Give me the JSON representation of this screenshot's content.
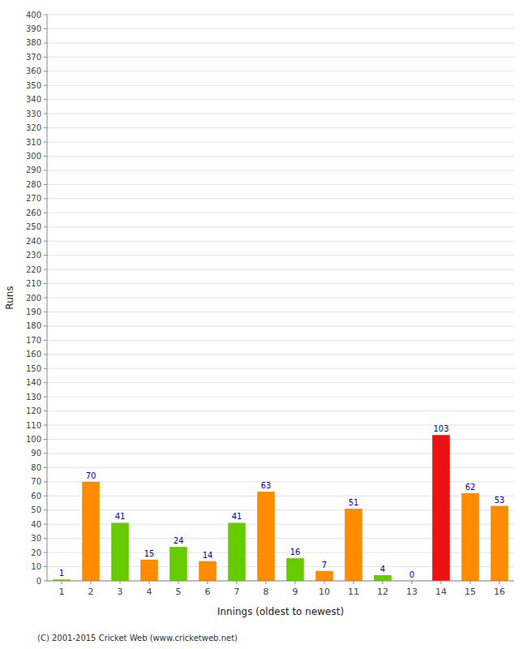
{
  "chart_data": {
    "type": "bar",
    "categories": [
      "1",
      "2",
      "3",
      "4",
      "5",
      "6",
      "7",
      "8",
      "9",
      "10",
      "11",
      "12",
      "13",
      "14",
      "15",
      "16"
    ],
    "values": [
      1,
      70,
      41,
      15,
      24,
      14,
      41,
      63,
      16,
      7,
      51,
      4,
      0,
      103,
      62,
      53
    ],
    "colors": [
      "#66cc00",
      "#ff8c00",
      "#66cc00",
      "#ff8c00",
      "#66cc00",
      "#ff8c00",
      "#66cc00",
      "#ff8c00",
      "#66cc00",
      "#ff8c00",
      "#ff8c00",
      "#66cc00",
      "#ff8c00",
      "#ee1111",
      "#ff8c00",
      "#ff8c00"
    ],
    "x_label": "Innings (oldest to newest)",
    "y_label": "Runs",
    "ylim": [
      0,
      400
    ],
    "yticks": [
      0,
      10,
      20,
      30,
      40,
      50,
      60,
      70,
      80,
      90,
      100,
      110,
      120,
      130,
      140,
      150,
      160,
      170,
      180,
      190,
      200,
      210,
      220,
      230,
      240,
      250,
      260,
      270,
      280,
      290,
      300,
      310,
      320,
      330,
      340,
      350,
      360,
      370,
      380,
      390,
      400
    ],
    "grid": true,
    "data_labels": true,
    "annotations": [
      "(C) 2001-2015 Cricket Web (www.cricketweb.net)"
    ]
  }
}
